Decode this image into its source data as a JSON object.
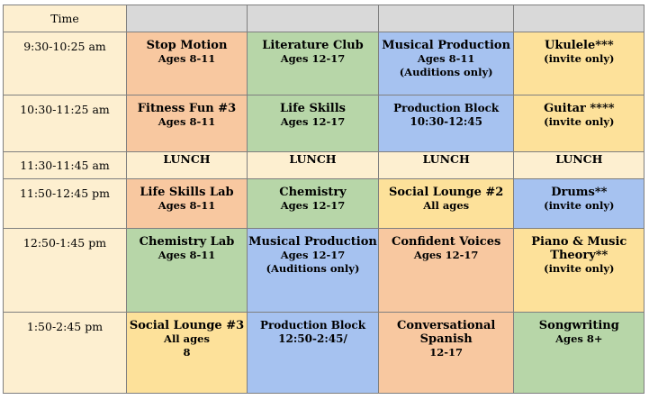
{
  "header": {
    "time_label": "Time"
  },
  "rows": [
    {
      "time": "9:30-10:25 am",
      "cells": [
        {
          "title": "Stop Motion",
          "lines": [
            "Ages 8-11"
          ]
        },
        {
          "title": "Literature Club",
          "lines": [
            "Ages 12-17"
          ]
        },
        {
          "title": "Musical Production",
          "lines": [
            "Ages 8-11",
            "(Auditions only)"
          ]
        },
        {
          "title": "Ukulele***",
          "lines": [
            "(invite only)"
          ]
        }
      ]
    },
    {
      "time": "10:30-11:25 am",
      "cells": [
        {
          "title": "Fitness Fun #3",
          "lines": [
            "Ages 8-11"
          ]
        },
        {
          "title": "Life Skills",
          "lines": [
            "Ages 12-17"
          ]
        },
        {
          "title": "Production Block",
          "lines": [
            "10:30-12:45"
          ]
        },
        {
          "title": "Guitar ****",
          "lines": [
            "(invite only)"
          ]
        }
      ]
    },
    {
      "time": "11:30-11:45 am",
      "lunch": "LUNCH"
    },
    {
      "time": "11:50-12:45 pm",
      "cells": [
        {
          "title": "Life Skills Lab",
          "lines": [
            "Ages 8-11"
          ]
        },
        {
          "title": "Chemistry",
          "lines": [
            "Ages 12-17"
          ]
        },
        {
          "title": "Social Lounge #2",
          "lines": [
            "All ages"
          ]
        },
        {
          "title": "Drums**",
          "lines": [
            "(invite only)"
          ]
        }
      ]
    },
    {
      "time": "12:50-1:45 pm",
      "cells": [
        {
          "title": "Chemistry Lab",
          "lines": [
            "Ages 8-11"
          ]
        },
        {
          "title": "Musical Production",
          "lines": [
            "Ages 12-17",
            "(Auditions only)"
          ]
        },
        {
          "title": "Confident Voices",
          "lines": [
            "Ages 12-17"
          ]
        },
        {
          "title": "Piano & Music Theory**",
          "lines": [
            "(invite only)"
          ]
        }
      ]
    },
    {
      "time": "1:50-2:45 pm",
      "cells": [
        {
          "title": "Social Lounge #3",
          "lines": [
            "All ages",
            "8"
          ]
        },
        {
          "title": "Production Block",
          "lines": [
            "12:50-2:45/"
          ]
        },
        {
          "title": "Conversational Spanish",
          "lines": [
            "12-17"
          ]
        },
        {
          "title": "Songwriting",
          "lines": [
            "Ages 8+"
          ]
        }
      ]
    }
  ],
  "colors": {
    "orange": "#f8c8a0",
    "green": "#b7d6a8",
    "blue": "#a6c2f0",
    "yellow": "#fde19a",
    "time": "#fdefd0",
    "header": "#d9d9d9"
  }
}
